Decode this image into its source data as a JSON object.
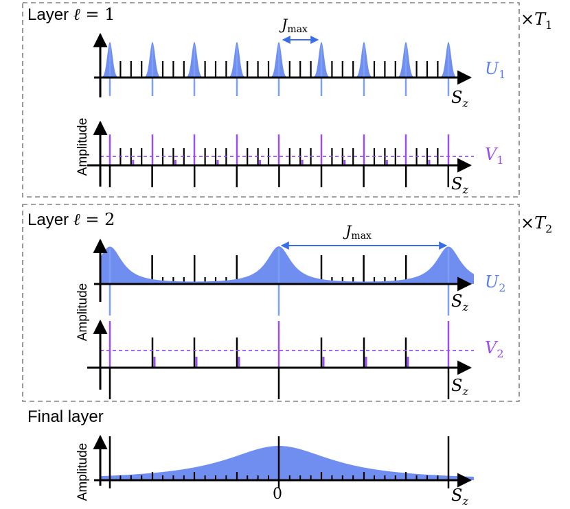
{
  "layer1": {
    "title_prefix": "Layer ",
    "ell": "ℓ",
    "eq": " = 1",
    "multiplier_x": "×",
    "multiplier_T": "T",
    "multiplier_sub": "1",
    "jmax_J": "J",
    "jmax_sub": "max",
    "U_label": "U",
    "U_sub": "1",
    "V_label": "V",
    "V_sub": "1"
  },
  "layer2": {
    "title_prefix": "Layer ",
    "ell": "ℓ",
    "eq": " = 2",
    "multiplier_x": "×",
    "multiplier_T": "T",
    "multiplier_sub": "2",
    "jmax_J": "J",
    "jmax_sub": "max",
    "U_label": "U",
    "U_sub": "2",
    "V_label": "V",
    "V_sub": "2"
  },
  "final": {
    "title": "Final layer",
    "zero_tick": "0"
  },
  "axis": {
    "amplitude_label": "Amplitude",
    "sz_S": "S",
    "sz_sub": "z"
  },
  "colors": {
    "u_fill": "#6f8ef0",
    "u_line": "#7da0f5",
    "v_line": "#9a4ef0",
    "jmax_arrow": "#3a6ee8",
    "box_border": "#808080"
  }
}
